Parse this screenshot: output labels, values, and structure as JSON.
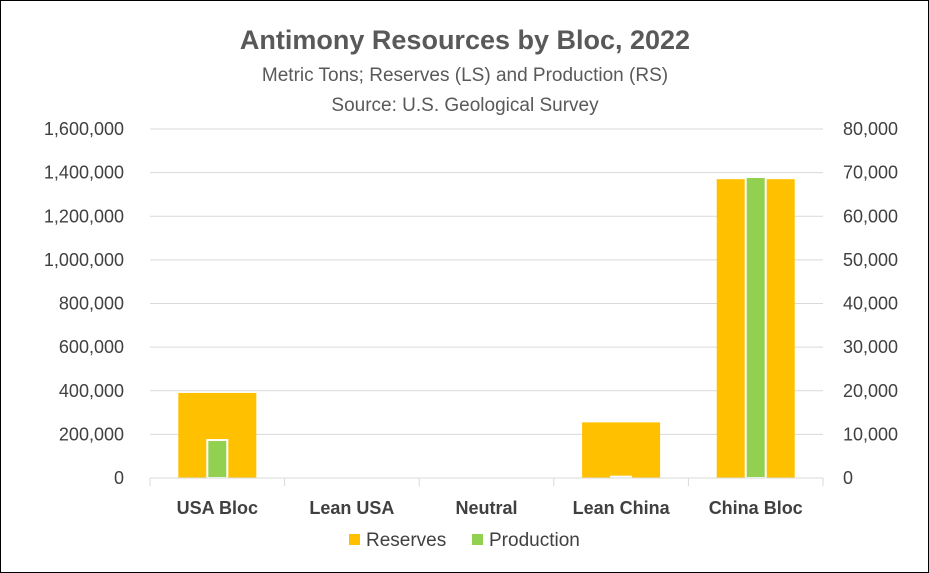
{
  "chart_data": {
    "type": "bar",
    "title": "Antimony Resources by Bloc, 2022",
    "subtitle_lines": [
      "Metric Tons; Reserves (LS) and Production (RS)",
      "Source:  U.S. Geological Survey"
    ],
    "categories": [
      "USA Bloc",
      "Lean USA",
      "Neutral",
      "Lean China",
      "China Bloc"
    ],
    "series": [
      {
        "name": "Reserves",
        "axis": "left",
        "color": "#FFC000",
        "values": [
          390000,
          0,
          0,
          255000,
          1370000
        ]
      },
      {
        "name": "Production",
        "axis": "right",
        "color": "#92D050",
        "values": [
          8700,
          0,
          0,
          300,
          69000
        ]
      }
    ],
    "y_left": {
      "lim": [
        0,
        1600000
      ],
      "ticks": [
        0,
        200000,
        400000,
        600000,
        800000,
        1000000,
        1200000,
        1400000,
        1600000
      ],
      "tick_labels": [
        "0",
        "200,000",
        "400,000",
        "600,000",
        "800,000",
        "1,000,000",
        "1,200,000",
        "1,400,000",
        "1,600,000"
      ]
    },
    "y_right": {
      "lim": [
        0,
        80000
      ],
      "ticks": [
        0,
        10000,
        20000,
        30000,
        40000,
        50000,
        60000,
        70000,
        80000
      ],
      "tick_labels": [
        "0",
        "10,000",
        "20,000",
        "30,000",
        "40,000",
        "50,000",
        "60,000",
        "70,000",
        "80,000"
      ]
    },
    "grid": true,
    "gridline_color": "#D9D9D9",
    "legend": {
      "position": "bottom",
      "labels": [
        "Reserves",
        "Production"
      ]
    }
  }
}
